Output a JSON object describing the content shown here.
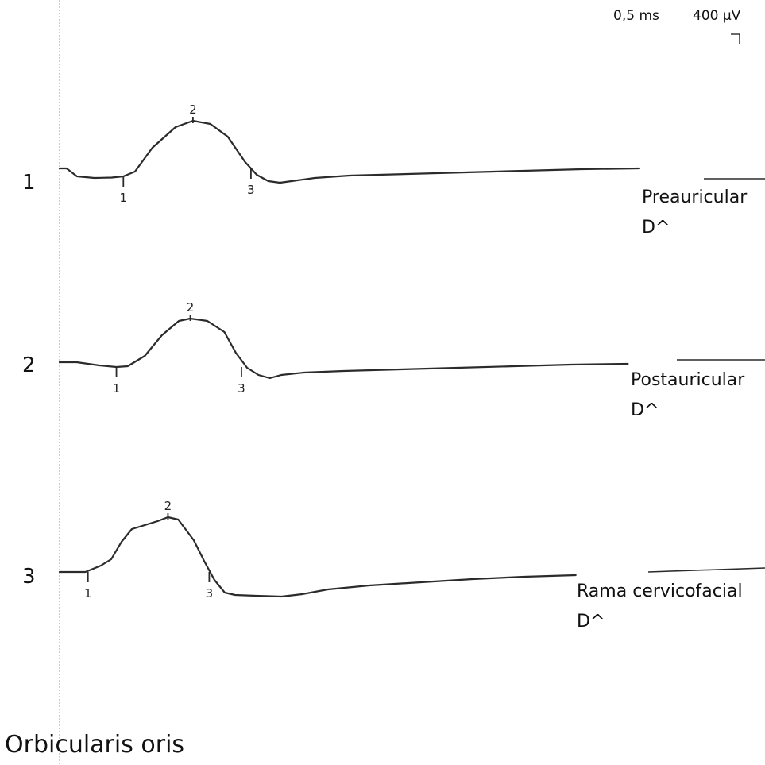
{
  "chart_data": {
    "type": "line",
    "title": "Orbicularis oris",
    "scale": {
      "time": "0,5 ms",
      "amplitude": "400 µV"
    },
    "x_unit": "ms",
    "y_unit": "µV",
    "traces": [
      {
        "number": "1",
        "site_line1": "Preauricular",
        "site_line2": "D^",
        "points": [
          [
            0,
            0
          ],
          [
            0.12,
            0
          ],
          [
            0.3,
            -100
          ],
          [
            0.6,
            -120
          ],
          [
            0.9,
            -115
          ],
          [
            1.1,
            -100
          ],
          [
            1.3,
            -40
          ],
          [
            1.6,
            260
          ],
          [
            2.0,
            520
          ],
          [
            2.3,
            600
          ],
          [
            2.6,
            560
          ],
          [
            2.9,
            400
          ],
          [
            3.2,
            80
          ],
          [
            3.4,
            -80
          ],
          [
            3.6,
            -160
          ],
          [
            3.8,
            -180
          ],
          [
            4.0,
            -160
          ],
          [
            4.4,
            -120
          ],
          [
            5.0,
            -90
          ],
          [
            6.0,
            -70
          ],
          [
            7.0,
            -50
          ],
          [
            8.0,
            -30
          ],
          [
            9.0,
            -10
          ],
          [
            10.0,
            0
          ]
        ],
        "markers": [
          {
            "label": "1",
            "x": 1.1,
            "y": -100
          },
          {
            "label": "2",
            "x": 2.3,
            "y": 600
          },
          {
            "label": "3",
            "x": 3.3,
            "y": 0
          }
        ]
      },
      {
        "number": "2",
        "site_line1": "Postauricular",
        "site_line2": "D^",
        "points": [
          [
            0,
            0
          ],
          [
            0.3,
            0
          ],
          [
            0.7,
            -40
          ],
          [
            1.0,
            -60
          ],
          [
            1.2,
            -50
          ],
          [
            1.5,
            80
          ],
          [
            1.8,
            340
          ],
          [
            2.1,
            520
          ],
          [
            2.3,
            550
          ],
          [
            2.6,
            520
          ],
          [
            2.9,
            380
          ],
          [
            3.1,
            120
          ],
          [
            3.3,
            -70
          ],
          [
            3.5,
            -160
          ],
          [
            3.7,
            -200
          ],
          [
            3.9,
            -160
          ],
          [
            4.3,
            -130
          ],
          [
            5.0,
            -110
          ],
          [
            6.0,
            -90
          ],
          [
            7.0,
            -70
          ],
          [
            8.0,
            -50
          ],
          [
            9.0,
            -30
          ],
          [
            10.0,
            -20
          ]
        ],
        "markers": [
          {
            "label": "1",
            "x": 1.0,
            "y": -60
          },
          {
            "label": "2",
            "x": 2.3,
            "y": 550
          },
          {
            "label": "3",
            "x": 3.2,
            "y": -60
          }
        ]
      },
      {
        "number": "3",
        "site_line1": "Rama cervicofacial",
        "site_line2": "D^",
        "points": [
          [
            0,
            0
          ],
          [
            0.3,
            0
          ],
          [
            0.5,
            0
          ],
          [
            0.8,
            80
          ],
          [
            1.0,
            160
          ],
          [
            1.2,
            380
          ],
          [
            1.4,
            540
          ],
          [
            1.6,
            580
          ],
          [
            1.9,
            640
          ],
          [
            2.1,
            690
          ],
          [
            2.3,
            660
          ],
          [
            2.6,
            400
          ],
          [
            2.8,
            140
          ],
          [
            3.0,
            -100
          ],
          [
            3.2,
            -260
          ],
          [
            3.4,
            -290
          ],
          [
            3.8,
            -300
          ],
          [
            4.3,
            -310
          ],
          [
            4.7,
            -280
          ],
          [
            5.2,
            -220
          ],
          [
            6.0,
            -170
          ],
          [
            7.0,
            -130
          ],
          [
            8.0,
            -90
          ],
          [
            9.0,
            -60
          ],
          [
            10.0,
            -40
          ]
        ],
        "markers": [
          {
            "label": "1",
            "x": 0.55,
            "y": 0
          },
          {
            "label": "2",
            "x": 2.1,
            "y": 690
          },
          {
            "label": "3",
            "x": 2.9,
            "y": 0
          }
        ]
      }
    ]
  }
}
